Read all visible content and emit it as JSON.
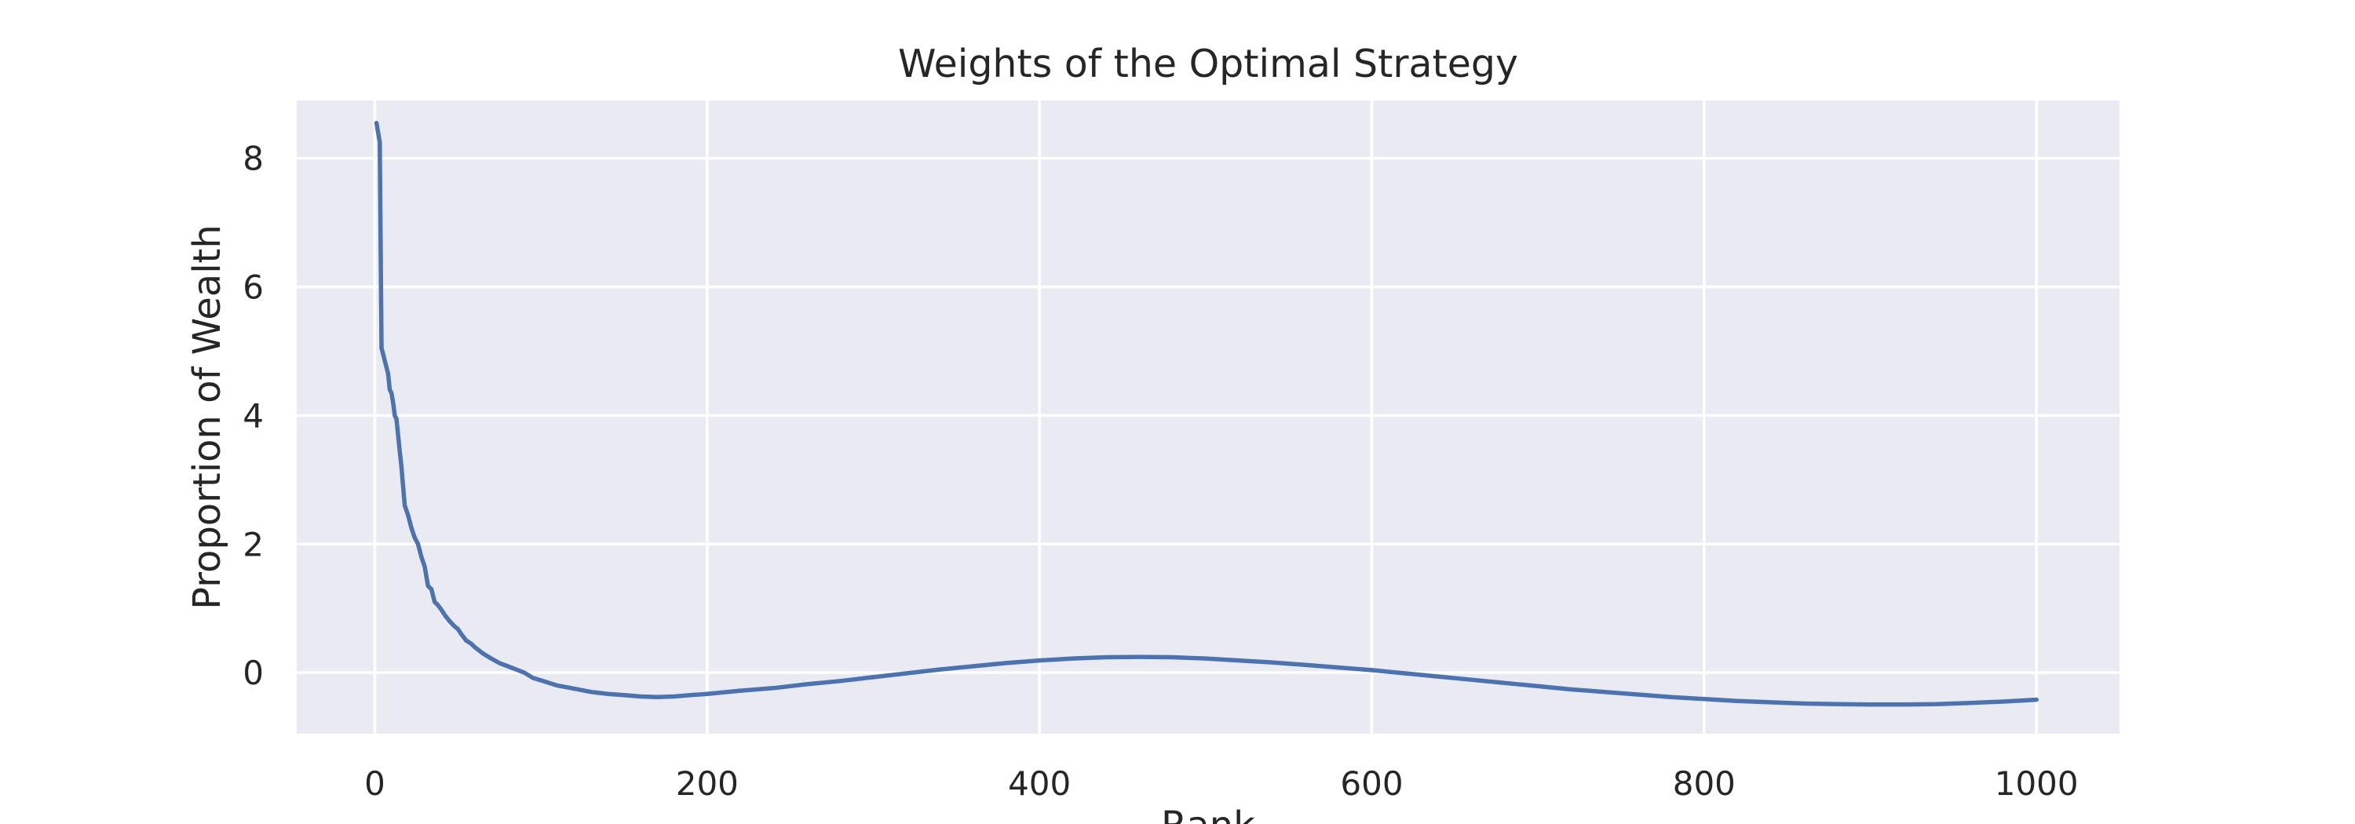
{
  "chart_data": {
    "type": "line",
    "title": "Weights of the Optimal Strategy",
    "xlabel": "Rank",
    "ylabel": "Proportion of Wealth",
    "xlim": [
      -47,
      1050
    ],
    "ylim": [
      -0.95,
      8.9
    ],
    "xticks": [
      0,
      200,
      400,
      600,
      800,
      1000
    ],
    "yticks": [
      0,
      2,
      4,
      6,
      8
    ],
    "grid": true,
    "background": "#eaeaf2",
    "grid_color": "#ffffff",
    "line_color": "#4c72b0",
    "series": [
      {
        "x": [
          1,
          3,
          4,
          5,
          7,
          8,
          9,
          10,
          11,
          12,
          13,
          14,
          15,
          16,
          17,
          18,
          20,
          22,
          24,
          26,
          28,
          30,
          32,
          34,
          36,
          38,
          40,
          42,
          45,
          48,
          50,
          52,
          55,
          58,
          60,
          65,
          70,
          75,
          80,
          85,
          90,
          95,
          100,
          110,
          120,
          130,
          140,
          150,
          160,
          170,
          180,
          190,
          200,
          220,
          240,
          260,
          280,
          300,
          320,
          340,
          360,
          380,
          400,
          420,
          440,
          460,
          480,
          500,
          520,
          540,
          560,
          580,
          600,
          620,
          640,
          660,
          680,
          700,
          720,
          740,
          760,
          780,
          800,
          820,
          840,
          860,
          880,
          900,
          920,
          940,
          960,
          980,
          1000
        ],
        "values": [
          8.55,
          8.25,
          5.05,
          4.95,
          4.75,
          4.65,
          4.4,
          4.35,
          4.2,
          4.0,
          3.95,
          3.7,
          3.45,
          3.2,
          2.9,
          2.6,
          2.45,
          2.25,
          2.1,
          2.0,
          1.8,
          1.65,
          1.35,
          1.3,
          1.1,
          1.05,
          0.98,
          0.9,
          0.8,
          0.72,
          0.68,
          0.6,
          0.5,
          0.45,
          0.4,
          0.3,
          0.22,
          0.15,
          0.1,
          0.05,
          0.0,
          -0.08,
          -0.12,
          -0.2,
          -0.25,
          -0.3,
          -0.33,
          -0.35,
          -0.37,
          -0.38,
          -0.37,
          -0.35,
          -0.33,
          -0.28,
          -0.24,
          -0.18,
          -0.13,
          -0.07,
          -0.01,
          0.05,
          0.1,
          0.15,
          0.19,
          0.22,
          0.24,
          0.245,
          0.24,
          0.22,
          0.19,
          0.16,
          0.12,
          0.08,
          0.04,
          -0.01,
          -0.06,
          -0.11,
          -0.16,
          -0.21,
          -0.26,
          -0.3,
          -0.34,
          -0.38,
          -0.41,
          -0.44,
          -0.46,
          -0.48,
          -0.49,
          -0.495,
          -0.495,
          -0.49,
          -0.47,
          -0.45,
          -0.42
        ]
      }
    ]
  }
}
